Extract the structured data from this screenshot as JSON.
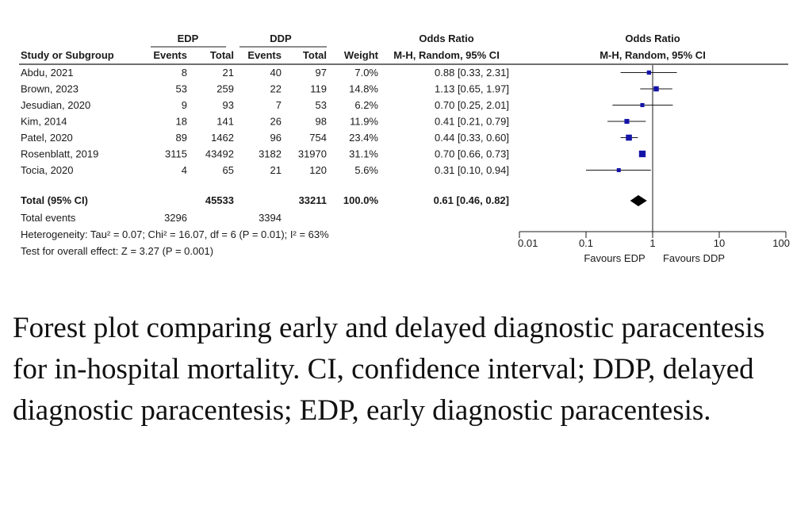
{
  "table": {
    "group_headers": {
      "edp": "EDP",
      "ddp": "DDP",
      "or_text": "Odds Ratio",
      "or_plot": "Odds Ratio"
    },
    "col_headers": {
      "study": "Study or Subgroup",
      "edp_events": "Events",
      "edp_total": "Total",
      "ddp_events": "Events",
      "ddp_total": "Total",
      "weight": "Weight",
      "or_text": "M-H, Random, 95% CI",
      "or_plot": "M-H, Random, 95% CI"
    },
    "rows": [
      {
        "study": "Abdu, 2021",
        "edp_events": "8",
        "edp_total": "21",
        "ddp_events": "40",
        "ddp_total": "97",
        "weight": "7.0%",
        "ci_text": "0.88 [0.33, 2.31]"
      },
      {
        "study": "Brown, 2023",
        "edp_events": "53",
        "edp_total": "259",
        "ddp_events": "22",
        "ddp_total": "119",
        "weight": "14.8%",
        "ci_text": "1.13 [0.65, 1.97]"
      },
      {
        "study": "Jesudian, 2020",
        "edp_events": "9",
        "edp_total": "93",
        "ddp_events": "7",
        "ddp_total": "53",
        "weight": "6.2%",
        "ci_text": "0.70 [0.25, 2.01]"
      },
      {
        "study": "Kim, 2014",
        "edp_events": "18",
        "edp_total": "141",
        "ddp_events": "26",
        "ddp_total": "98",
        "weight": "11.9%",
        "ci_text": "0.41 [0.21, 0.79]"
      },
      {
        "study": "Patel, 2020",
        "edp_events": "89",
        "edp_total": "1462",
        "ddp_events": "96",
        "ddp_total": "754",
        "weight": "23.4%",
        "ci_text": "0.44 [0.33, 0.60]"
      },
      {
        "study": "Rosenblatt, 2019",
        "edp_events": "3115",
        "edp_total": "43492",
        "ddp_events": "3182",
        "ddp_total": "31970",
        "weight": "31.1%",
        "ci_text": "0.70 [0.66, 0.73]"
      },
      {
        "study": "Tocia, 2020",
        "edp_events": "4",
        "edp_total": "65",
        "ddp_events": "21",
        "ddp_total": "120",
        "weight": "5.6%",
        "ci_text": "0.31 [0.10, 0.94]"
      }
    ],
    "total": {
      "label": "Total (95% CI)",
      "edp_total": "45533",
      "ddp_total": "33211",
      "weight": "100.0%",
      "ci_text": "0.61 [0.46, 0.82]"
    },
    "total_events": {
      "label": "Total events",
      "edp": "3296",
      "ddp": "3394"
    },
    "heterogeneity": "Heterogeneity: Tau² = 0.07; Chi² = 16.07, df = 6 (P = 0.01); I² = 63%",
    "overall_effect": "Test for overall effect: Z = 3.27 (P = 0.001)"
  },
  "chart_data": {
    "type": "forest",
    "x_scale": "log",
    "xlim": [
      0.01,
      100
    ],
    "x_ticks": [
      "0.01",
      "0.1",
      "1",
      "10",
      "100"
    ],
    "null_line": 1,
    "favours_left": "Favours EDP",
    "favours_right": "Favours DDP",
    "studies": [
      {
        "name": "Abdu, 2021",
        "or": 0.88,
        "lo": 0.33,
        "hi": 2.31,
        "weight": 7.0
      },
      {
        "name": "Brown, 2023",
        "or": 1.13,
        "lo": 0.65,
        "hi": 1.97,
        "weight": 14.8
      },
      {
        "name": "Jesudian, 2020",
        "or": 0.7,
        "lo": 0.25,
        "hi": 2.01,
        "weight": 6.2
      },
      {
        "name": "Kim, 2014",
        "or": 0.41,
        "lo": 0.21,
        "hi": 0.79,
        "weight": 11.9
      },
      {
        "name": "Patel, 2020",
        "or": 0.44,
        "lo": 0.33,
        "hi": 0.6,
        "weight": 23.4
      },
      {
        "name": "Rosenblatt, 2019",
        "or": 0.7,
        "lo": 0.66,
        "hi": 0.73,
        "weight": 31.1
      },
      {
        "name": "Tocia, 2020",
        "or": 0.31,
        "lo": 0.1,
        "hi": 0.94,
        "weight": 5.6
      }
    ],
    "pooled": {
      "or": 0.61,
      "lo": 0.46,
      "hi": 0.82
    },
    "colors": {
      "marker": "#1414a8",
      "line": "#1a1a1a",
      "diamond": "#000000"
    }
  },
  "caption": "Forest plot comparing early and delayed diagnostic paracentesis for in-hospital mortality. CI, confidence interval; DDP, delayed diagnostic paracentesis; EDP, early diagnostic paracentesis."
}
